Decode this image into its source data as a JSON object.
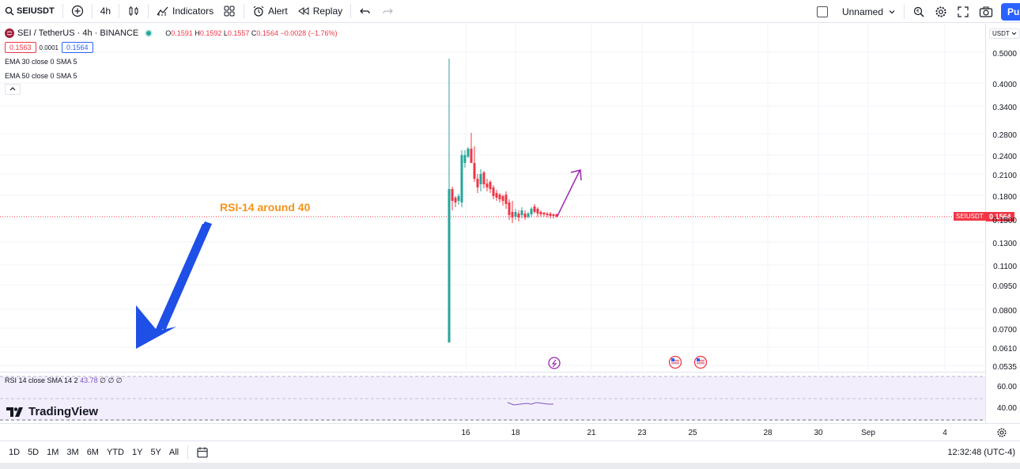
{
  "toolbar": {
    "symbol": "SEIUSDT",
    "interval": "4h",
    "indicators_label": "Indicators",
    "alert_label": "Alert",
    "replay_label": "Replay",
    "layout_name": "Unnamed",
    "publish_label": "Pu"
  },
  "legend": {
    "title": "SEI / TetherUS · 4h · BINANCE",
    "ohlc": {
      "o_key": "O",
      "o": "0.1591",
      "h_key": "H",
      "h": "0.1592",
      "l_key": "L",
      "l": "0.1557",
      "c_key": "C",
      "c": "0.1564",
      "change": "−0.0028 (−1.76%)"
    },
    "sell_price": "0.1563",
    "spread": "0.0001",
    "buy_price": "0.1564",
    "ema1": "EMA 30 close 0 SMA 5",
    "ema2": "EMA 50 close 0 SMA 5"
  },
  "annotation": "RSI-14 around 40",
  "price_axis": {
    "currency": "USDT",
    "labels": [
      "0.5000",
      "0.4000",
      "0.3400",
      "0.2800",
      "0.2400",
      "0.2100",
      "0.1800",
      "0.1500",
      "0.1300",
      "0.1100",
      "0.0950",
      "0.0800",
      "0.0700",
      "0.0610",
      "0.0535"
    ],
    "current_price": "0.1564",
    "current_symbol": "SEIUSDT",
    "rsi_labels": [
      "60.00",
      "40.00"
    ]
  },
  "rsi": {
    "legend": "RSI 14 close SMA 14 2",
    "value": "43.78",
    "extra": "∅ ∅ ∅"
  },
  "logo": "TradingView",
  "time_axis": [
    "16",
    "18",
    "21",
    "23",
    "25",
    "28",
    "30",
    "Sep",
    "4"
  ],
  "bottom": {
    "ranges": [
      "1D",
      "5D",
      "1M",
      "3M",
      "6M",
      "YTD",
      "1Y",
      "5Y",
      "All"
    ],
    "clock": "12:32:48 (UTC-4)"
  },
  "colors": {
    "up": "#26a69a",
    "down": "#f23645",
    "accent": "#2962ff",
    "rsi": "#7e57c2",
    "annotation": "#f7931a",
    "arrow": "#1e4fe6"
  }
}
